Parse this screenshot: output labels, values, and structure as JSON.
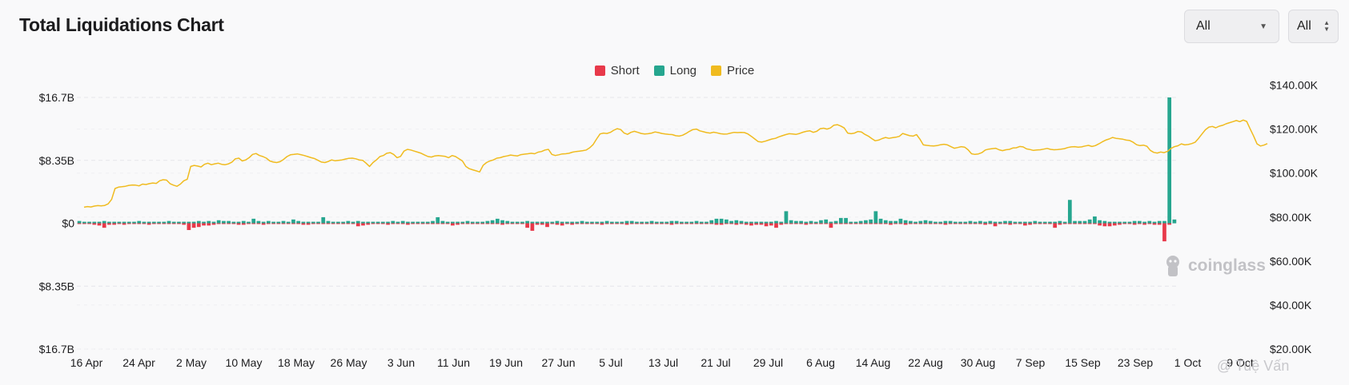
{
  "header": {
    "title": "Total Liquidations Chart"
  },
  "controls": {
    "range_select": {
      "value": "All"
    },
    "mode_select": {
      "value": "All"
    }
  },
  "watermark": "coinglass",
  "byline": "@ Tuệ Vấn",
  "chart_data": {
    "type": "bar",
    "title": "Total Liquidations Chart",
    "legend_placement": "top-center",
    "grid": true,
    "legend": [
      {
        "name": "Short",
        "color": "#e8394a"
      },
      {
        "name": "Long",
        "color": "#26a68f"
      },
      {
        "name": "Price",
        "color": "#f0bb1f"
      }
    ],
    "y_left": {
      "tick_labels": [
        "$16.7B",
        "$8.35B",
        "$0",
        "$8.35B",
        "$16.7B"
      ],
      "range": [
        -16.7,
        16.7
      ],
      "unit": "B USD"
    },
    "y_right": {
      "tick_labels": [
        "$140.00K",
        "$120.00K",
        "$100.00K",
        "$80.00K",
        "$60.00K",
        "$40.00K",
        "$20.00K"
      ],
      "range": [
        20000,
        150000
      ]
    },
    "x_tick_labels": [
      "16 Apr",
      "24 Apr",
      "2 May",
      "10 May",
      "18 May",
      "26 May",
      "3 Jun",
      "11 Jun",
      "19 Jun",
      "27 Jun",
      "5 Jul",
      "13 Jul",
      "21 Jul",
      "29 Jul",
      "6 Aug",
      "14 Aug",
      "22 Aug",
      "30 Aug",
      "7 Sep",
      "15 Sep",
      "23 Sep",
      "1 Oct",
      "9 Oct"
    ],
    "series": [
      {
        "name": "Long",
        "unit": "B USD",
        "values": [
          0.3,
          0.2,
          0.2,
          0.2,
          0.2,
          0.3,
          0.2,
          0.2,
          0.2,
          0.2,
          0.2,
          0.2,
          0.3,
          0.2,
          0.2,
          0.2,
          0.2,
          0.2,
          0.3,
          0.2,
          0.2,
          0.2,
          0.2,
          0.2,
          0.3,
          0.2,
          0.3,
          0.2,
          0.4,
          0.3,
          0.3,
          0.2,
          0.2,
          0.3,
          0.2,
          0.6,
          0.3,
          0.2,
          0.3,
          0.2,
          0.2,
          0.3,
          0.2,
          0.5,
          0.3,
          0.2,
          0.2,
          0.2,
          0.2,
          0.8,
          0.3,
          0.2,
          0.2,
          0.2,
          0.3,
          0.2,
          0.3,
          0.2,
          0.2,
          0.2,
          0.2,
          0.2,
          0.2,
          0.3,
          0.2,
          0.3,
          0.2,
          0.2,
          0.2,
          0.2,
          0.2,
          0.3,
          0.8,
          0.3,
          0.2,
          0.2,
          0.2,
          0.2,
          0.3,
          0.2,
          0.2,
          0.2,
          0.3,
          0.4,
          0.6,
          0.4,
          0.3,
          0.2,
          0.2,
          0.2,
          0.3,
          0.2,
          0.2,
          0.2,
          0.2,
          0.2,
          0.3,
          0.2,
          0.2,
          0.2,
          0.2,
          0.3,
          0.2,
          0.2,
          0.2,
          0.2,
          0.3,
          0.2,
          0.2,
          0.2,
          0.3,
          0.3,
          0.2,
          0.2,
          0.2,
          0.3,
          0.2,
          0.2,
          0.2,
          0.3,
          0.3,
          0.2,
          0.2,
          0.2,
          0.3,
          0.2,
          0.2,
          0.4,
          0.6,
          0.6,
          0.5,
          0.3,
          0.4,
          0.3,
          0.2,
          0.2,
          0.2,
          0.2,
          0.2,
          0.2,
          0.3,
          0.2,
          1.6,
          0.4,
          0.3,
          0.3,
          0.2,
          0.3,
          0.2,
          0.4,
          0.5,
          0.2,
          0.3,
          0.7,
          0.7,
          0.2,
          0.2,
          0.3,
          0.4,
          0.5,
          1.6,
          0.6,
          0.4,
          0.3,
          0.3,
          0.6,
          0.4,
          0.3,
          0.2,
          0.3,
          0.4,
          0.3,
          0.2,
          0.2,
          0.3,
          0.3,
          0.2,
          0.2,
          0.2,
          0.3,
          0.2,
          0.3,
          0.2,
          0.3,
          0.2,
          0.2,
          0.3,
          0.3,
          0.2,
          0.2,
          0.2,
          0.2,
          0.3,
          0.2,
          0.2,
          0.2,
          0.2,
          0.3,
          0.2,
          3.1,
          0.3,
          0.3,
          0.3,
          0.5,
          0.9,
          0.4,
          0.3,
          0.2,
          0.2,
          0.2,
          0.2,
          0.2,
          0.3,
          0.3,
          0.2,
          0.3,
          0.2,
          0.3,
          0.3,
          16.7,
          0.5
        ]
      },
      {
        "name": "Short",
        "unit": "B USD",
        "values": [
          0.1,
          0.1,
          0.1,
          0.2,
          0.3,
          0.6,
          0.2,
          0.2,
          0.1,
          0.2,
          0.1,
          0.1,
          0.1,
          0.1,
          0.2,
          0.1,
          0.1,
          0.1,
          0.1,
          0.1,
          0.1,
          0.2,
          0.9,
          0.6,
          0.5,
          0.3,
          0.3,
          0.2,
          0.1,
          0.1,
          0.1,
          0.1,
          0.2,
          0.2,
          0.1,
          0.1,
          0.1,
          0.2,
          0.1,
          0.1,
          0.1,
          0.1,
          0.1,
          0.1,
          0.1,
          0.2,
          0.2,
          0.1,
          0.1,
          0.1,
          0.1,
          0.1,
          0.1,
          0.1,
          0.1,
          0.1,
          0.4,
          0.3,
          0.2,
          0.1,
          0.1,
          0.1,
          0.2,
          0.1,
          0.1,
          0.1,
          0.2,
          0.1,
          0.1,
          0.1,
          0.1,
          0.1,
          0.1,
          0.1,
          0.1,
          0.3,
          0.2,
          0.1,
          0.1,
          0.1,
          0.1,
          0.1,
          0.1,
          0.1,
          0.1,
          0.2,
          0.1,
          0.1,
          0.1,
          0.1,
          0.6,
          1.0,
          0.2,
          0.2,
          0.5,
          0.1,
          0.2,
          0.3,
          0.1,
          0.2,
          0.1,
          0.1,
          0.1,
          0.1,
          0.1,
          0.2,
          0.1,
          0.1,
          0.1,
          0.1,
          0.2,
          0.1,
          0.1,
          0.1,
          0.1,
          0.1,
          0.1,
          0.1,
          0.1,
          0.2,
          0.1,
          0.1,
          0.1,
          0.1,
          0.1,
          0.1,
          0.1,
          0.1,
          0.2,
          0.2,
          0.1,
          0.1,
          0.2,
          0.1,
          0.2,
          0.3,
          0.2,
          0.2,
          0.4,
          0.3,
          0.6,
          0.2,
          0.1,
          0.1,
          0.1,
          0.1,
          0.2,
          0.1,
          0.1,
          0.1,
          0.1,
          0.6,
          0.1,
          0.1,
          0.1,
          0.1,
          0.1,
          0.1,
          0.1,
          0.1,
          0.1,
          0.1,
          0.1,
          0.2,
          0.1,
          0.1,
          0.2,
          0.1,
          0.1,
          0.1,
          0.1,
          0.1,
          0.1,
          0.1,
          0.2,
          0.1,
          0.1,
          0.1,
          0.1,
          0.1,
          0.1,
          0.1,
          0.2,
          0.1,
          0.4,
          0.1,
          0.1,
          0.2,
          0.1,
          0.1,
          0.3,
          0.2,
          0.1,
          0.1,
          0.1,
          0.1,
          0.6,
          0.2,
          0.1,
          0.1,
          0.1,
          0.1,
          0.1,
          0.1,
          0.1,
          0.3,
          0.4,
          0.4,
          0.3,
          0.2,
          0.1,
          0.1,
          0.2,
          0.1,
          0.2,
          0.1,
          0.2,
          0.2,
          2.4,
          0.2
        ]
      },
      {
        "name": "Price",
        "unit": "USD",
        "values": [
          84500,
          84800,
          84600,
          85000,
          85200,
          85100,
          85300,
          86000,
          88000,
          93000,
          93600,
          93800,
          94000,
          94400,
          94600,
          94500,
          94200,
          95000,
          94800,
          95200,
          95500,
          95300,
          96500,
          97000,
          96800,
          95200,
          94500,
          94000,
          95000,
          96500,
          97200,
          103000,
          103500,
          103200,
          102800,
          104000,
          104500,
          103800,
          104200,
          104500,
          104000,
          103800,
          104200,
          105000,
          106500,
          106800,
          105500,
          106000,
          107000,
          108500,
          108900,
          108000,
          107500,
          106800,
          105500,
          105000,
          104800,
          105200,
          106200,
          107500,
          108300,
          108500,
          108700,
          108400,
          108000,
          107500,
          107000,
          106600,
          105800,
          105000,
          104800,
          105300,
          106000,
          105600,
          105800,
          106000,
          106400,
          106700,
          106800,
          106500,
          106000,
          105800,
          104500,
          103000,
          104800,
          106000,
          107500,
          108000,
          109000,
          109300,
          108500,
          107000,
          107600,
          110000,
          110800,
          110500,
          110000,
          109500,
          109000,
          108200,
          107500,
          107300,
          107800,
          108000,
          107800,
          107600,
          107000,
          108000,
          107500,
          106500,
          105500,
          103000,
          102000,
          101500,
          101000,
          100500,
          103500,
          104800,
          105500,
          106000,
          106800,
          107000,
          107500,
          107800,
          108200,
          108000,
          107800,
          108400,
          108600,
          108800,
          109000,
          108800,
          109500,
          109800,
          110500,
          110800,
          108500,
          108000,
          108300,
          108700,
          108800,
          109000,
          109500,
          109800,
          110000,
          110200,
          110500,
          111500,
          113000,
          115500,
          117800,
          118200,
          118000,
          118500,
          119500,
          120200,
          119800,
          118200,
          117600,
          118500,
          119000,
          118500,
          118000,
          117800,
          117900,
          118200,
          118700,
          118400,
          118000,
          117800,
          117600,
          117500,
          117000,
          116800,
          117200,
          118000,
          119000,
          119800,
          120000,
          119200,
          118800,
          118400,
          118200,
          118600,
          118300,
          117900,
          117700,
          117800,
          118200,
          118500,
          118400,
          118500,
          118400,
          117800,
          116700,
          115500,
          114300,
          114100,
          114500,
          115000,
          115500,
          115800,
          116500,
          117000,
          117500,
          117900,
          117800,
          117600,
          118000,
          118600,
          119000,
          119200,
          118500,
          119000,
          120200,
          120400,
          120000,
          120500,
          121800,
          122000,
          121400,
          120500,
          118200,
          117900,
          118200,
          118900,
          118700,
          117600,
          116800,
          115700,
          114700,
          115000,
          115700,
          116200,
          115800,
          116100,
          116300,
          116700,
          118000,
          117500,
          117000,
          116800,
          117500,
          115400,
          112800,
          112600,
          112400,
          112300,
          112500,
          112900,
          113100,
          112800,
          112000,
          111300,
          111600,
          112000,
          111800,
          110600,
          108800,
          108500,
          108700,
          109300,
          110500,
          110900,
          111100,
          111300,
          110600,
          110200,
          110600,
          110800,
          111400,
          111500,
          112100,
          111900,
          111000,
          110700,
          110300,
          110500,
          110600,
          110900,
          111200,
          110800,
          110600,
          110700,
          110900,
          111100,
          111600,
          111900,
          112000,
          111800,
          111900,
          112300,
          112600,
          112100,
          112500,
          113300,
          114200,
          115000,
          115500,
          116200,
          115800,
          115600,
          115400,
          115000,
          114800,
          114000,
          112900,
          112500,
          112700,
          112200,
          110300,
          109400,
          109100,
          109600,
          109300,
          109900,
          111200,
          112000,
          112400,
          113300,
          112800,
          113000,
          113400,
          114000,
          115800,
          117800,
          119700,
          120900,
          121200,
          120600,
          121300,
          121700,
          122400,
          122900,
          123400,
          123900,
          123400,
          124100,
          123500,
          120100,
          116900,
          113300,
          112300,
          112700,
          113400
        ]
      }
    ]
  }
}
